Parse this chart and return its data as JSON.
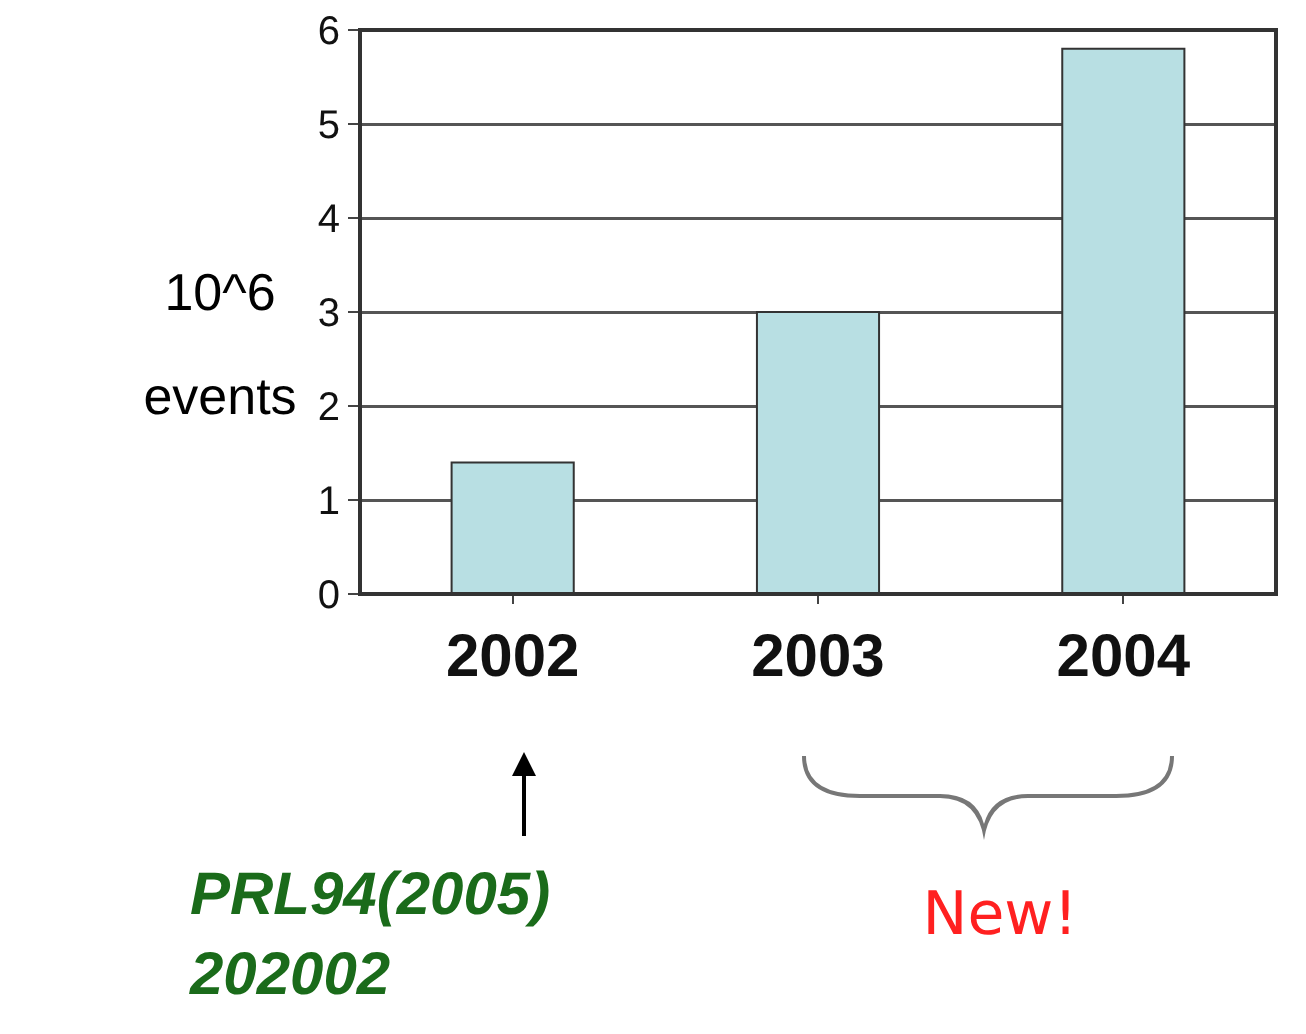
{
  "chart_data": {
    "type": "bar",
    "categories": [
      "2002",
      "2003",
      "2004"
    ],
    "values": [
      1.4,
      3.0,
      5.8
    ],
    "color": "#b8dfe3",
    "ylabel": "10^6 events",
    "ylim": [
      0,
      6
    ],
    "yticks": [
      0,
      1,
      2,
      3,
      4,
      5,
      6
    ],
    "grid": "y",
    "legend": false,
    "annotations": [
      "PRL94(2005) 202002",
      "New!"
    ]
  }
}
